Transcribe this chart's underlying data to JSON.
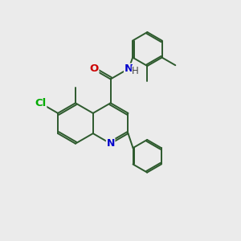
{
  "bg_color": "#ebebeb",
  "bond_color": "#2d5a2d",
  "atom_colors": {
    "N": "#0000cc",
    "O": "#cc0000",
    "Cl": "#00aa00",
    "C": "#2d5a2d"
  },
  "lw": 1.4,
  "ring_r": 0.72,
  "ph_r": 0.58,
  "dm_r": 0.6
}
